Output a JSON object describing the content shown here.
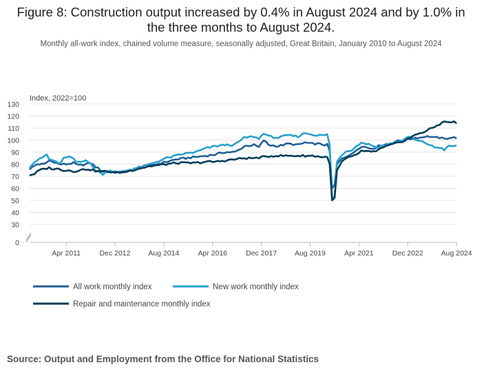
{
  "header": {
    "title": "Figure 8: Construction output increased by 0.4% in August 2024 and by 1.0% in the three months to August 2024.",
    "subtitle": "Monthly all-work index, chained volume measure, seasonally adjusted, Great Britain, January 2010 to August 2024"
  },
  "footer": {
    "source": "Source: Output and Employment from the Office for National Statistics"
  },
  "chart_data": {
    "type": "line",
    "title": "Figure 8: Construction output increased by 0.4% in August 2024 and by 1.0% in the three months to August 2024.",
    "ylabel": "Index, 2022=100",
    "xlabel": "",
    "x_range": [
      "Jan 2010",
      "Aug 2024"
    ],
    "ylim": [
      0,
      130
    ],
    "axis_break": [
      0,
      30
    ],
    "yticks": [
      0,
      30,
      40,
      50,
      60,
      70,
      80,
      90,
      100,
      110,
      120,
      130
    ],
    "xticks": [
      {
        "label": "Apr 2011",
        "month_index": 15
      },
      {
        "label": "Dec 2012",
        "month_index": 35
      },
      {
        "label": "Aug 2014",
        "month_index": 55
      },
      {
        "label": "Apr 2016",
        "month_index": 75
      },
      {
        "label": "Dec 2017",
        "month_index": 95
      },
      {
        "label": "Aug 2019",
        "month_index": 115
      },
      {
        "label": "Apr 2021",
        "month_index": 135
      },
      {
        "label": "Dec 2022",
        "month_index": 155
      },
      {
        "label": "Aug 2024",
        "month_index": 175
      }
    ],
    "legend_position": "bottom",
    "series": [
      {
        "name": "All work monthly index",
        "color": "#206095",
        "anchors": [
          [
            0,
            76
          ],
          [
            3,
            80
          ],
          [
            6,
            80
          ],
          [
            8,
            83
          ],
          [
            10,
            82
          ],
          [
            12,
            80
          ],
          [
            15,
            80
          ],
          [
            18,
            81
          ],
          [
            20,
            79
          ],
          [
            23,
            80
          ],
          [
            25,
            81
          ],
          [
            27,
            78
          ],
          [
            30,
            74
          ],
          [
            33,
            74
          ],
          [
            36,
            73
          ],
          [
            40,
            74
          ],
          [
            44,
            76
          ],
          [
            48,
            78
          ],
          [
            52,
            80
          ],
          [
            56,
            82
          ],
          [
            60,
            84
          ],
          [
            64,
            85
          ],
          [
            68,
            86
          ],
          [
            72,
            87
          ],
          [
            76,
            88
          ],
          [
            80,
            90
          ],
          [
            84,
            90
          ],
          [
            86,
            92
          ],
          [
            88,
            95
          ],
          [
            92,
            96
          ],
          [
            94,
            94
          ],
          [
            96,
            100
          ],
          [
            98,
            96
          ],
          [
            102,
            95
          ],
          [
            106,
            97
          ],
          [
            110,
            96
          ],
          [
            113,
            98
          ],
          [
            115,
            97
          ],
          [
            118,
            97
          ],
          [
            121,
            96
          ],
          [
            122,
            97
          ],
          [
            123,
            91
          ],
          [
            124,
            60
          ],
          [
            125,
            63
          ],
          [
            126,
            80
          ],
          [
            128,
            85
          ],
          [
            130,
            87
          ],
          [
            132,
            88
          ],
          [
            134,
            92
          ],
          [
            136,
            95
          ],
          [
            140,
            93
          ],
          [
            142,
            94
          ],
          [
            144,
            96
          ],
          [
            148,
            97
          ],
          [
            150,
            99
          ],
          [
            154,
            100
          ],
          [
            156,
            101
          ],
          [
            158,
            102
          ],
          [
            160,
            102
          ],
          [
            162,
            103
          ],
          [
            164,
            103
          ],
          [
            166,
            102
          ],
          [
            168,
            102
          ],
          [
            170,
            101
          ],
          [
            172,
            102
          ],
          [
            174,
            102
          ],
          [
            175,
            102
          ]
        ]
      },
      {
        "name": "New work monthly index",
        "color": "#27a0cc",
        "anchors": [
          [
            0,
            78
          ],
          [
            2,
            82
          ],
          [
            4,
            84
          ],
          [
            7,
            88
          ],
          [
            8,
            84
          ],
          [
            10,
            83
          ],
          [
            12,
            80
          ],
          [
            14,
            85
          ],
          [
            17,
            86
          ],
          [
            19,
            82
          ],
          [
            21,
            82
          ],
          [
            23,
            84
          ],
          [
            25,
            80
          ],
          [
            27,
            75
          ],
          [
            30,
            72
          ],
          [
            33,
            75
          ],
          [
            36,
            73
          ],
          [
            40,
            75
          ],
          [
            44,
            77
          ],
          [
            48,
            79
          ],
          [
            52,
            82
          ],
          [
            56,
            85
          ],
          [
            60,
            87
          ],
          [
            64,
            89
          ],
          [
            68,
            90
          ],
          [
            72,
            93
          ],
          [
            76,
            95
          ],
          [
            80,
            96
          ],
          [
            84,
            96
          ],
          [
            86,
            99
          ],
          [
            88,
            102
          ],
          [
            92,
            103
          ],
          [
            94,
            101
          ],
          [
            96,
            106
          ],
          [
            98,
            103
          ],
          [
            102,
            102
          ],
          [
            106,
            104
          ],
          [
            110,
            103
          ],
          [
            113,
            106
          ],
          [
            115,
            105
          ],
          [
            118,
            104
          ],
          [
            121,
            104
          ],
          [
            122,
            105
          ],
          [
            123,
            96
          ],
          [
            124,
            52
          ],
          [
            125,
            53
          ],
          [
            126,
            82
          ],
          [
            128,
            88
          ],
          [
            130,
            91
          ],
          [
            132,
            92
          ],
          [
            134,
            95
          ],
          [
            136,
            98
          ],
          [
            140,
            96
          ],
          [
            142,
            94
          ],
          [
            144,
            95
          ],
          [
            148,
            97
          ],
          [
            150,
            98
          ],
          [
            154,
            101
          ],
          [
            156,
            103
          ],
          [
            158,
            100
          ],
          [
            160,
            99
          ],
          [
            162,
            98
          ],
          [
            164,
            96
          ],
          [
            166,
            94
          ],
          [
            168,
            94
          ],
          [
            170,
            92
          ],
          [
            172,
            95
          ],
          [
            175,
            95
          ]
        ]
      },
      {
        "name": "Repair and maintenance monthly index",
        "color": "#003c57",
        "anchors": [
          [
            0,
            71
          ],
          [
            2,
            72
          ],
          [
            4,
            75
          ],
          [
            6,
            76
          ],
          [
            8,
            77
          ],
          [
            10,
            76
          ],
          [
            12,
            76
          ],
          [
            14,
            75
          ],
          [
            16,
            75
          ],
          [
            18,
            74
          ],
          [
            20,
            75
          ],
          [
            24,
            76
          ],
          [
            28,
            74
          ],
          [
            32,
            74
          ],
          [
            36,
            73
          ],
          [
            40,
            74
          ],
          [
            44,
            76
          ],
          [
            48,
            78
          ],
          [
            52,
            79
          ],
          [
            56,
            80
          ],
          [
            60,
            81
          ],
          [
            64,
            81
          ],
          [
            68,
            81
          ],
          [
            72,
            82
          ],
          [
            76,
            82
          ],
          [
            80,
            83
          ],
          [
            84,
            84
          ],
          [
            88,
            85
          ],
          [
            92,
            85
          ],
          [
            96,
            86
          ],
          [
            100,
            87
          ],
          [
            104,
            87
          ],
          [
            108,
            87
          ],
          [
            112,
            87
          ],
          [
            116,
            87
          ],
          [
            120,
            86
          ],
          [
            122,
            86
          ],
          [
            123,
            80
          ],
          [
            124,
            50
          ],
          [
            125,
            52
          ],
          [
            126,
            75
          ],
          [
            128,
            82
          ],
          [
            130,
            85
          ],
          [
            132,
            86
          ],
          [
            134,
            88
          ],
          [
            136,
            91
          ],
          [
            140,
            90
          ],
          [
            142,
            91
          ],
          [
            144,
            93
          ],
          [
            148,
            96
          ],
          [
            150,
            97
          ],
          [
            154,
            100
          ],
          [
            156,
            102
          ],
          [
            158,
            104
          ],
          [
            160,
            106
          ],
          [
            162,
            107
          ],
          [
            164,
            109
          ],
          [
            166,
            111
          ],
          [
            168,
            113
          ],
          [
            169,
            115
          ],
          [
            170,
            115
          ],
          [
            172,
            115
          ],
          [
            174,
            115
          ],
          [
            175,
            114
          ]
        ]
      }
    ]
  }
}
